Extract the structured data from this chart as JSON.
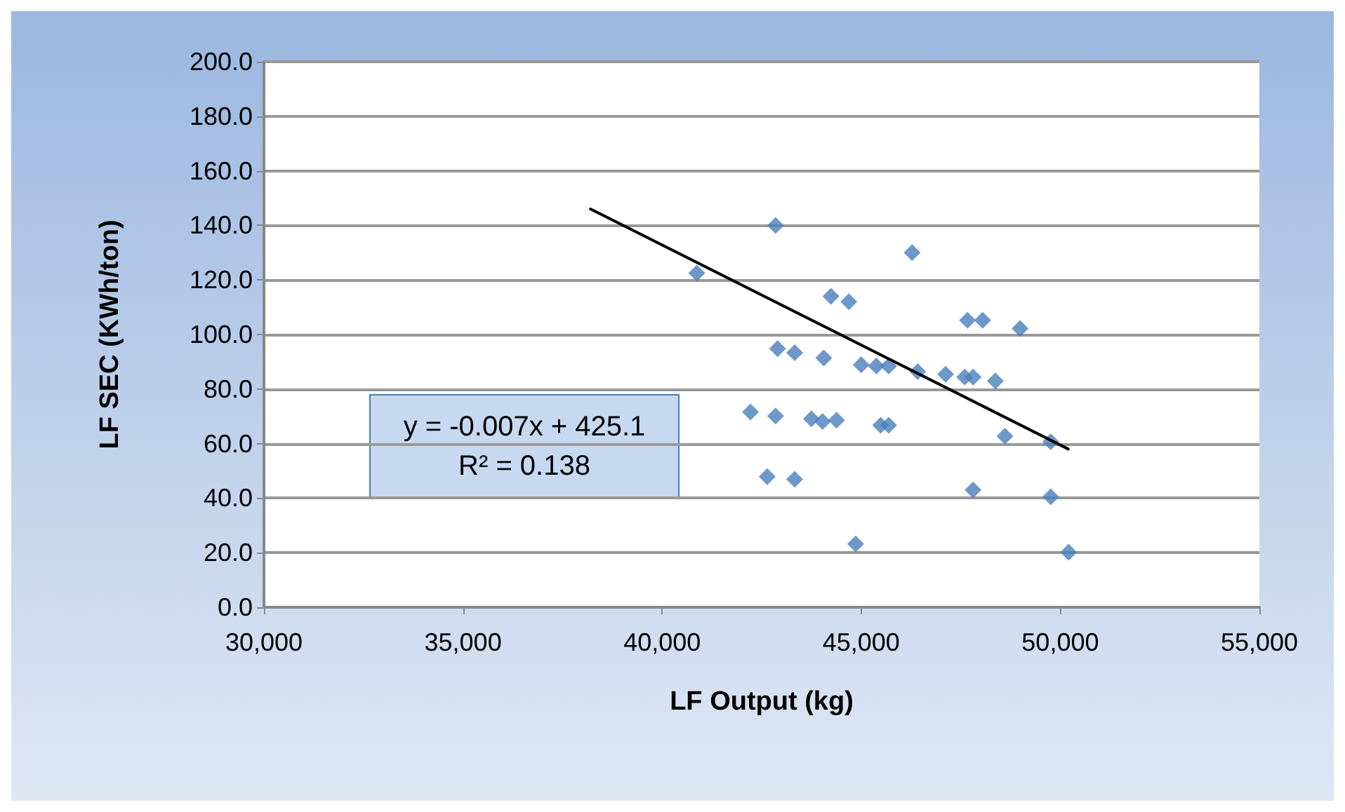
{
  "chart_data": {
    "type": "scatter",
    "xlabel": "LF Output (kg)",
    "ylabel": "LF SEC (KWh/ton)",
    "xlim": [
      30000,
      55000
    ],
    "xticks": [
      {
        "value": 30000,
        "label": "30,000"
      },
      {
        "value": 35000,
        "label": "35,000"
      },
      {
        "value": 40000,
        "label": "40,000"
      },
      {
        "value": 45000,
        "label": "45,000"
      },
      {
        "value": 50000,
        "label": "50,000"
      },
      {
        "value": 55000,
        "label": "55,000"
      }
    ],
    "ylim": [
      0,
      200
    ],
    "yticks": [
      {
        "value": 0,
        "label": "0.0"
      },
      {
        "value": 20,
        "label": "20.0"
      },
      {
        "value": 40,
        "label": "40.0"
      },
      {
        "value": 60,
        "label": "60.0"
      },
      {
        "value": 80,
        "label": "80.0"
      },
      {
        "value": 100,
        "label": "100.0"
      },
      {
        "value": 120,
        "label": "120.0"
      },
      {
        "value": 140,
        "label": "140.0"
      },
      {
        "value": 160,
        "label": "160.0"
      },
      {
        "value": 180,
        "label": "180.0"
      },
      {
        "value": 200,
        "label": "200.0"
      }
    ],
    "grid": "y",
    "marker": "diamond",
    "series": [
      {
        "color": "#4a7ebb",
        "x": [
          40870,
          42850,
          42900,
          43330,
          44240,
          44690,
          46280,
          44060,
          45000,
          45380,
          45690,
          46420,
          47120,
          47600,
          47810,
          48370,
          47670,
          48050,
          48990,
          48610,
          49760,
          47810,
          49760,
          50210,
          42220,
          42850,
          43750,
          44030,
          44380,
          45490,
          45690,
          42640,
          43330,
          44860
        ],
        "values": [
          122.5,
          140,
          94.8,
          93.3,
          114,
          112,
          130,
          91.4,
          88.9,
          88.4,
          88.4,
          86.4,
          85.4,
          84.4,
          84.4,
          83,
          105.2,
          105.2,
          102.2,
          62.7,
          60.7,
          43,
          40.5,
          20.2,
          71.6,
          70.1,
          69.1,
          68.1,
          68.6,
          66.7,
          66.7,
          47.9,
          46.9,
          23.2
        ]
      },
      {
        "type": "line",
        "color": "#000000",
        "marker": "none",
        "x": [
          38200,
          50200
        ],
        "values": [
          146,
          58
        ]
      }
    ],
    "annotations": [
      "y = -0.007x + 425.1\nR² = 0.138"
    ]
  }
}
